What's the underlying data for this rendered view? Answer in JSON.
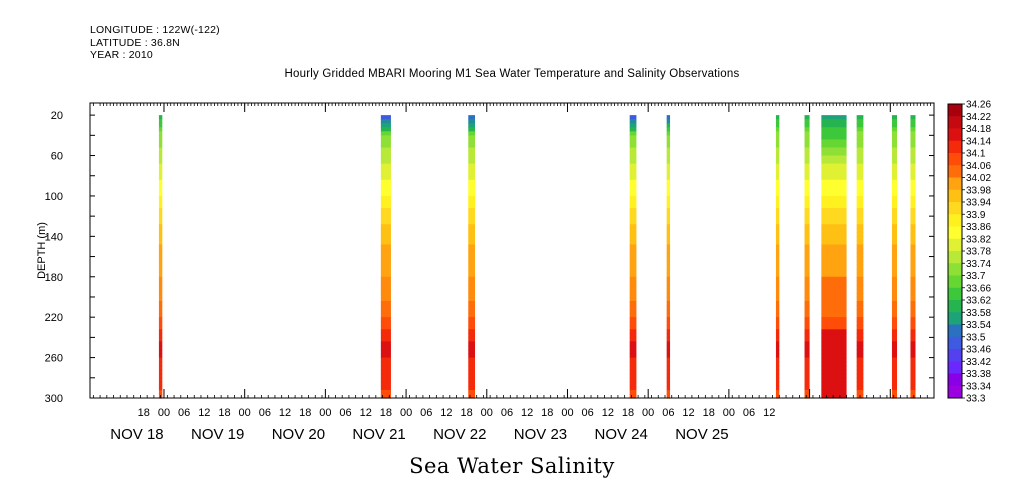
{
  "header": {
    "longitude": "LONGITUDE : 122W(-122)",
    "latitude": "LATITUDE : 36.8N",
    "year": "YEAR : 2010"
  },
  "chart_data": {
    "type": "heatmap",
    "title": "Hourly Gridded MBARI Mooring M1 Sea Water Temperature and Salinity Observations",
    "footer": "Sea Water Salinity",
    "ylabel": "DEPTH (m)",
    "xlabel": "",
    "ylim": [
      300,
      0
    ],
    "y_ticks": [
      20,
      60,
      100,
      140,
      180,
      220,
      260,
      300
    ],
    "x_hour_ticks": [
      "18",
      "00",
      "06",
      "12",
      "18",
      "00",
      "06",
      "12",
      "18",
      "00",
      "06",
      "12",
      "18",
      "00",
      "06",
      "12",
      "18",
      "00",
      "06",
      "12",
      "18",
      "00",
      "06",
      "12",
      "18",
      "00",
      "06",
      "12",
      "18",
      "00",
      "06",
      "12"
    ],
    "x_day_labels": [
      "NOV 18",
      "NOV 19",
      "NOV 20",
      "NOV 21",
      "NOV 22",
      "NOV 23",
      "NOV 24",
      "NOV 25"
    ],
    "colorbar": {
      "levels": [
        "34.26",
        "34.22",
        "34.18",
        "34.14",
        "34.1",
        "34.06",
        "34.02",
        "33.98",
        "33.94",
        "33.9",
        "33.86",
        "33.82",
        "33.78",
        "33.74",
        "33.7",
        "33.66",
        "33.62",
        "33.58",
        "33.54",
        "33.5",
        "33.46",
        "33.42",
        "33.38",
        "33.34",
        "33.3"
      ],
      "min": 33.3,
      "max": 34.3
    },
    "columns_hours_since_nov18_00": [
      {
        "start": -1.5,
        "end": -0.5
      },
      {
        "start": 64.5,
        "end": 67.5,
        "top_value": 33.48
      },
      {
        "start": 90.5,
        "end": 92.5,
        "top_value": 33.5
      },
      {
        "start": 138.5,
        "end": 140.5,
        "top_value": 33.48
      },
      {
        "start": 149.5,
        "end": 150.5,
        "top_value": 33.52
      },
      {
        "start": 182,
        "end": 183
      },
      {
        "start": 190.5,
        "end": 192
      },
      {
        "start": 195.5,
        "end": 203,
        "wide": true
      },
      {
        "start": 206,
        "end": 208
      },
      {
        "start": 216.5,
        "end": 218
      },
      {
        "start": 222,
        "end": 223.5
      }
    ],
    "depth_profile": [
      {
        "depth": 20,
        "value": 33.62
      },
      {
        "depth": 40,
        "value": 33.74
      },
      {
        "depth": 70,
        "value": 33.8
      },
      {
        "depth": 100,
        "value": 33.88
      },
      {
        "depth": 120,
        "value": 33.94
      },
      {
        "depth": 140,
        "value": 33.98
      },
      {
        "depth": 170,
        "value": 34.02
      },
      {
        "depth": 200,
        "value": 34.06
      },
      {
        "depth": 225,
        "value": 34.12
      },
      {
        "depth": 250,
        "value": 34.2
      },
      {
        "depth": 280,
        "value": 34.16
      },
      {
        "depth": 300,
        "value": 34.14
      }
    ],
    "colors": [
      "#9b00e0",
      "#8a00e6",
      "#6a28ff",
      "#5540f0",
      "#3d5ae0",
      "#2a72c0",
      "#208c9a",
      "#1ea27a",
      "#26b450",
      "#3cc83a",
      "#66d632",
      "#8ee036",
      "#b8e838",
      "#e0f032",
      "#ffff30",
      "#fff020",
      "#ffd820",
      "#ffc014",
      "#ffa410",
      "#ff8a0c",
      "#ff6c0a",
      "#ff4c08",
      "#f42a0a",
      "#dc1010",
      "#c40a10",
      "#a8000c"
    ]
  }
}
